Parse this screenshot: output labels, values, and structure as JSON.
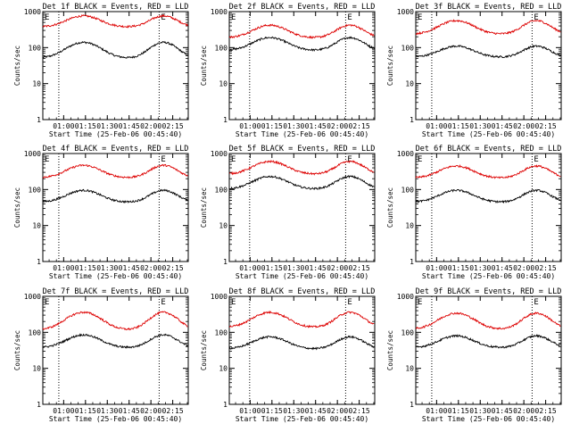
{
  "colors": {
    "events": "#000000",
    "lld": "#dd0000",
    "axes": "#000000",
    "background": "#ffffff"
  },
  "chart_data": [
    {
      "type": "line",
      "title": "Det 1f BLACK = Events, RED = LLD",
      "xlabel": "Start Time (25-Feb-06 00:45:40)",
      "ylabel": "Counts/sec",
      "yscale": "log",
      "ylim": [
        1,
        1000
      ],
      "ytick_labels": [
        "1",
        "10",
        "100",
        "1000"
      ],
      "xlim_min": [
        0,
        100
      ],
      "x_ticks_min": [
        14.33,
        29.33,
        44.33,
        59.33,
        74.33,
        89.33
      ],
      "x_tick_labels": [
        "01:00",
        "01:15",
        "01:30",
        "01:45",
        "02:00",
        "02:15"
      ],
      "event_lines_min": [
        11,
        80
      ],
      "marker_label": "E",
      "marker_at_min": 80,
      "series": [
        {
          "name": "Events",
          "key": "events",
          "base": 52,
          "peak": 140
        },
        {
          "name": "LLD",
          "key": "lld",
          "base": 380,
          "peak": 760
        }
      ]
    },
    {
      "type": "line",
      "title": "Det 2f BLACK = Events, RED = LLD",
      "xlabel": "Start Time (25-Feb-06 00:45:40)",
      "ylabel": "Counts/sec",
      "yscale": "log",
      "ylim": [
        1,
        1000
      ],
      "ytick_labels": [
        "1",
        "10",
        "100",
        "1000"
      ],
      "xlim_min": [
        0,
        100
      ],
      "x_ticks_min": [
        14.33,
        29.33,
        44.33,
        59.33,
        74.33,
        89.33
      ],
      "x_tick_labels": [
        "01:00",
        "01:15",
        "01:30",
        "01:45",
        "02:00",
        "02:15"
      ],
      "event_lines_min": [
        14,
        80
      ],
      "marker_label": "E",
      "marker_at_min": 80,
      "series": [
        {
          "name": "Events",
          "key": "events",
          "base": 85,
          "peak": 190
        },
        {
          "name": "LLD",
          "key": "lld",
          "base": 190,
          "peak": 420
        }
      ]
    },
    {
      "type": "line",
      "title": "Det 3f BLACK = Events, RED = LLD",
      "xlabel": "Start Time (25-Feb-06 00:45:40)",
      "ylabel": "Counts/sec",
      "yscale": "log",
      "ylim": [
        1,
        1000
      ],
      "ytick_labels": [
        "1",
        "10",
        "100",
        "1000"
      ],
      "xlim_min": [
        0,
        100
      ],
      "x_ticks_min": [
        14.33,
        29.33,
        44.33,
        59.33,
        74.33,
        89.33
      ],
      "x_tick_labels": [
        "01:00",
        "01:15",
        "01:30",
        "01:45",
        "02:00",
        "02:15"
      ],
      "event_lines_min": [
        11,
        80
      ],
      "marker_label": "E",
      "marker_at_min": 80,
      "series": [
        {
          "name": "Events",
          "key": "events",
          "base": 55,
          "peak": 110
        },
        {
          "name": "LLD",
          "key": "lld",
          "base": 240,
          "peak": 560
        }
      ]
    },
    {
      "type": "line",
      "title": "Det 4f BLACK = Events, RED = LLD",
      "xlabel": "Start Time (25-Feb-06 00:45:40)",
      "ylabel": "Counts/sec",
      "yscale": "log",
      "ylim": [
        1,
        1000
      ],
      "ytick_labels": [
        "1",
        "10",
        "100",
        "1000"
      ],
      "xlim_min": [
        0,
        100
      ],
      "x_ticks_min": [
        14.33,
        29.33,
        44.33,
        59.33,
        74.33,
        89.33
      ],
      "x_tick_labels": [
        "01:00",
        "01:15",
        "01:30",
        "01:45",
        "02:00",
        "02:15"
      ],
      "event_lines_min": [
        11,
        80
      ],
      "marker_label": "E",
      "marker_at_min": 80,
      "series": [
        {
          "name": "Events",
          "key": "events",
          "base": 45,
          "peak": 95
        },
        {
          "name": "LLD",
          "key": "lld",
          "base": 215,
          "peak": 470
        }
      ]
    },
    {
      "type": "line",
      "title": "Det 5f BLACK = Events, RED = LLD",
      "xlabel": "Start Time (25-Feb-06 00:45:40)",
      "ylabel": "Counts/sec",
      "yscale": "log",
      "ylim": [
        1,
        1000
      ],
      "ytick_labels": [
        "1",
        "10",
        "100",
        "1000"
      ],
      "xlim_min": [
        0,
        100
      ],
      "x_ticks_min": [
        14.33,
        29.33,
        44.33,
        59.33,
        74.33,
        89.33
      ],
      "x_tick_labels": [
        "01:00",
        "01:15",
        "01:30",
        "01:45",
        "02:00",
        "02:15"
      ],
      "event_lines_min": [
        14,
        80
      ],
      "marker_label": "E",
      "marker_at_min": 80,
      "series": [
        {
          "name": "Events",
          "key": "events",
          "base": 105,
          "peak": 230
        },
        {
          "name": "LLD",
          "key": "lld",
          "base": 270,
          "peak": 600
        }
      ]
    },
    {
      "type": "line",
      "title": "Det 6f BLACK = Events, RED = LLD",
      "xlabel": "Start Time (25-Feb-06 00:45:40)",
      "ylabel": "Counts/sec",
      "yscale": "log",
      "ylim": [
        1,
        1000
      ],
      "ytick_labels": [
        "1",
        "10",
        "100",
        "1000"
      ],
      "xlim_min": [
        0,
        100
      ],
      "x_ticks_min": [
        14.33,
        29.33,
        44.33,
        59.33,
        74.33,
        89.33
      ],
      "x_tick_labels": [
        "01:00",
        "01:15",
        "01:30",
        "01:45",
        "02:00",
        "02:15"
      ],
      "event_lines_min": [
        11,
        80
      ],
      "marker_label": "E",
      "marker_at_min": 80,
      "series": [
        {
          "name": "Events",
          "key": "events",
          "base": 45,
          "peak": 95
        },
        {
          "name": "LLD",
          "key": "lld",
          "base": 210,
          "peak": 450
        }
      ]
    },
    {
      "type": "line",
      "title": "Det 7f BLACK = Events, RED = LLD",
      "xlabel": "Start Time (25-Feb-06 00:45:40)",
      "ylabel": "Counts/sec",
      "yscale": "log",
      "ylim": [
        1,
        1000
      ],
      "ytick_labels": [
        "1",
        "10",
        "100",
        "1000"
      ],
      "xlim_min": [
        0,
        100
      ],
      "x_ticks_min": [
        14.33,
        29.33,
        44.33,
        59.33,
        74.33,
        89.33
      ],
      "x_tick_labels": [
        "01:00",
        "01:15",
        "01:30",
        "01:45",
        "02:00",
        "02:15"
      ],
      "event_lines_min": [
        11,
        80
      ],
      "marker_label": "E",
      "marker_at_min": 80,
      "series": [
        {
          "name": "Events",
          "key": "events",
          "base": 38,
          "peak": 85
        },
        {
          "name": "LLD",
          "key": "lld",
          "base": 120,
          "peak": 360
        }
      ]
    },
    {
      "type": "line",
      "title": "Det 8f BLACK = Events, RED = LLD",
      "xlabel": "Start Time (25-Feb-06 00:45:40)",
      "ylabel": "Counts/sec",
      "yscale": "log",
      "ylim": [
        1,
        1000
      ],
      "ytick_labels": [
        "1",
        "10",
        "100",
        "1000"
      ],
      "xlim_min": [
        0,
        100
      ],
      "x_ticks_min": [
        14.33,
        29.33,
        44.33,
        59.33,
        74.33,
        89.33
      ],
      "x_tick_labels": [
        "01:00",
        "01:15",
        "01:30",
        "01:45",
        "02:00",
        "02:15"
      ],
      "event_lines_min": [
        14,
        80
      ],
      "marker_label": "E",
      "marker_at_min": 80,
      "series": [
        {
          "name": "Events",
          "key": "events",
          "base": 35,
          "peak": 75
        },
        {
          "name": "LLD",
          "key": "lld",
          "base": 140,
          "peak": 360
        }
      ]
    },
    {
      "type": "line",
      "title": "Det 9f BLACK = Events, RED = LLD",
      "xlabel": "Start Time (25-Feb-06 00:45:40)",
      "ylabel": "Counts/sec",
      "yscale": "log",
      "ylim": [
        1,
        1000
      ],
      "ytick_labels": [
        "1",
        "10",
        "100",
        "1000"
      ],
      "xlim_min": [
        0,
        100
      ],
      "x_ticks_min": [
        14.33,
        29.33,
        44.33,
        59.33,
        74.33,
        89.33
      ],
      "x_tick_labels": [
        "01:00",
        "01:15",
        "01:30",
        "01:45",
        "02:00",
        "02:15"
      ],
      "event_lines_min": [
        11,
        80
      ],
      "marker_label": "E",
      "marker_at_min": 80,
      "series": [
        {
          "name": "Events",
          "key": "events",
          "base": 38,
          "peak": 80
        },
        {
          "name": "LLD",
          "key": "lld",
          "base": 125,
          "peak": 340
        }
      ]
    }
  ]
}
